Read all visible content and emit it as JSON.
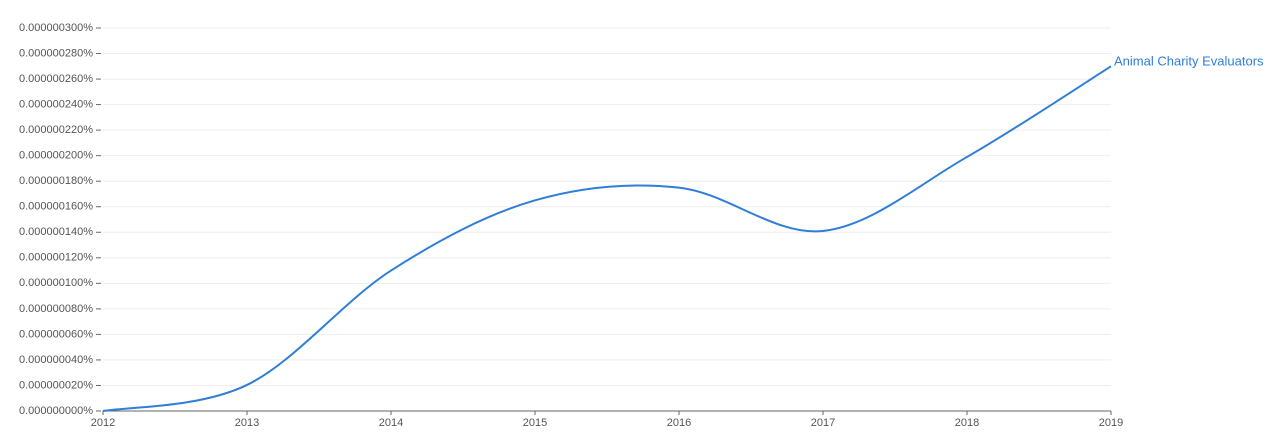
{
  "chart_data": {
    "type": "line",
    "x": [
      2012,
      2013,
      2014,
      2015,
      2016,
      2017,
      2018,
      2019
    ],
    "series": [
      {
        "name": "Animal Charity Evaluators",
        "color": "#2f7ed8",
        "values": [
          0,
          2.04e-08,
          1.1e-07,
          1.65e-07,
          1.75e-07,
          1.41e-07,
          1.99e-07,
          2.7e-07
        ]
      }
    ],
    "xlim": [
      2012,
      2019
    ],
    "xticks": [
      2012,
      2013,
      2014,
      2015,
      2016,
      2017,
      2018,
      2019
    ],
    "ylim": [
      0,
      3e-07
    ],
    "yticks": [
      {
        "value": 0,
        "label": "0.000000000%"
      },
      {
        "value": 2e-08,
        "label": "0.000000020%"
      },
      {
        "value": 4e-08,
        "label": "0.000000040%"
      },
      {
        "value": 6e-08,
        "label": "0.000000060%"
      },
      {
        "value": 8e-08,
        "label": "0.000000080%"
      },
      {
        "value": 1e-07,
        "label": "0.000000100%"
      },
      {
        "value": 1.2e-07,
        "label": "0.000000120%"
      },
      {
        "value": 1.4e-07,
        "label": "0.000000140%"
      },
      {
        "value": 1.6e-07,
        "label": "0.000000160%"
      },
      {
        "value": 1.8e-07,
        "label": "0.000000180%"
      },
      {
        "value": 2e-07,
        "label": "0.000000200%"
      },
      {
        "value": 2.2e-07,
        "label": "0.000000220%"
      },
      {
        "value": 2.4e-07,
        "label": "0.000000240%"
      },
      {
        "value": 2.6e-07,
        "label": "0.000000260%"
      },
      {
        "value": 2.8e-07,
        "label": "0.000000280%"
      },
      {
        "value": 3e-07,
        "label": "0.000000300%"
      }
    ],
    "grid": true
  }
}
